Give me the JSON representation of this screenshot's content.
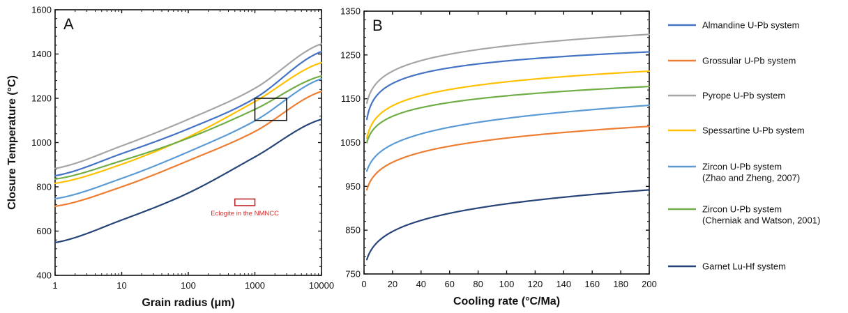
{
  "legend": {
    "placement": "right",
    "entries": [
      {
        "key": "almandine",
        "lines": [
          "Almandine U-Pb system"
        ],
        "color": "#4472c4"
      },
      {
        "key": "grossular",
        "lines": [
          "Grossular U-Pb system"
        ],
        "color": "#ed7d31"
      },
      {
        "key": "pyrope",
        "lines": [
          "Pyrope U-Pb system"
        ],
        "color": "#a5a5a5"
      },
      {
        "key": "spessartine",
        "lines": [
          "Spessartine U-Pb system"
        ],
        "color": "#ffc000"
      },
      {
        "key": "zircon_zz",
        "lines": [
          "Zircon U-Pb system",
          "(Zhao and Zheng, 2007)"
        ],
        "color": "#5b9bd5"
      },
      {
        "key": "zircon_cw",
        "lines": [
          "Zircon U-Pb system",
          "(Cherniak and Watson, 2001)"
        ],
        "color": "#70ad47"
      },
      {
        "key": "garnet_luhf",
        "lines": [
          "Garnet Lu-Hf system"
        ],
        "color": "#264478"
      }
    ]
  },
  "chart_data": [
    {
      "type": "line",
      "panel": "A",
      "title": "",
      "xlabel": "Grain radius (μm)",
      "ylabel": "Closure Temperature (°C)",
      "xscale": "log",
      "xlim": [
        1,
        10000
      ],
      "ylim": [
        400,
        1600
      ],
      "xticks": [
        1,
        10,
        100,
        1000,
        10000
      ],
      "xtick_labels": [
        "1",
        "10",
        "100",
        "1000",
        "10000"
      ],
      "yticks": [
        400,
        600,
        800,
        1000,
        1200,
        1400,
        1600
      ],
      "ytick_labels": [
        "400",
        "600",
        "800",
        "1000",
        "1200",
        "1400",
        "1600"
      ],
      "grid": false,
      "x": [
        1,
        10,
        100,
        1000,
        10000
      ],
      "series": [
        {
          "key": "almandine",
          "name": "Almandine U-Pb system",
          "values": [
            850,
            950,
            1062,
            1200,
            1411
          ]
        },
        {
          "key": "grossular",
          "name": "Grossular U-Pb system",
          "values": [
            712,
            800,
            918,
            1050,
            1231
          ]
        },
        {
          "key": "pyrope",
          "name": "Pyrope U-Pb system",
          "values": [
            883,
            985,
            1105,
            1245,
            1446
          ]
        },
        {
          "key": "spessartine",
          "name": "Spessartine U-Pb system",
          "values": [
            816,
            902,
            1025,
            1185,
            1361
          ]
        },
        {
          "key": "zircon_zz",
          "name": "Zircon U-Pb system (Zhao and Zheng, 2007)",
          "values": [
            746,
            838,
            958,
            1098,
            1288
          ]
        },
        {
          "key": "zircon_cw",
          "name": "Zircon U-Pb system (Cherniak and Watson, 2001)",
          "values": [
            835,
            918,
            1020,
            1150,
            1301
          ]
        },
        {
          "key": "garnet_luhf",
          "name": "Garnet Lu-Hf system",
          "values": [
            548,
            650,
            772,
            935,
            1105
          ]
        }
      ],
      "annotations": [
        {
          "kind": "box",
          "label": "",
          "x_range": [
            1000,
            3000
          ],
          "y_range": [
            1100,
            1200
          ],
          "color": "#111111"
        },
        {
          "kind": "box",
          "label": "Eclogite in the NMNCC",
          "x_range": [
            500,
            1000
          ],
          "y_range": [
            715,
            745
          ],
          "color": "#c0272d"
        }
      ],
      "panel_label": "A"
    },
    {
      "type": "line",
      "panel": "B",
      "title": "",
      "xlabel": "Cooling rate (°C/Ma)",
      "ylabel": "",
      "xlim": [
        0,
        200
      ],
      "ylim": [
        750,
        1350
      ],
      "xticks": [
        0,
        20,
        40,
        60,
        80,
        100,
        120,
        140,
        160,
        180,
        200
      ],
      "xtick_labels": [
        "0",
        "20",
        "40",
        "60",
        "80",
        "100",
        "120",
        "140",
        "160",
        "180",
        "200"
      ],
      "yticks": [
        750,
        850,
        950,
        1050,
        1150,
        1250,
        1350
      ],
      "ytick_labels": [
        "750",
        "850",
        "950",
        "1050",
        "1150",
        "1250",
        "1350"
      ],
      "grid": false,
      "x": [
        2,
        20,
        200
      ],
      "series": [
        {
          "key": "almandine",
          "name": "Almandine U-Pb system",
          "values": [
            1103,
            1185,
            1257
          ]
        },
        {
          "key": "grossular",
          "name": "Grossular U-Pb system",
          "values": [
            942,
            1005,
            1087
          ]
        },
        {
          "key": "pyrope",
          "name": "Pyrope U-Pb system",
          "values": [
            1140,
            1213,
            1297
          ]
        },
        {
          "key": "spessartine",
          "name": "Spessartine U-Pb system",
          "values": [
            1060,
            1134,
            1213
          ]
        },
        {
          "key": "zircon_zz",
          "name": "Zircon U-Pb system (Zhao and Zheng, 2007)",
          "values": [
            985,
            1046,
            1135
          ]
        },
        {
          "key": "zircon_cw",
          "name": "Zircon U-Pb system (Cherniak and Watson, 2001)",
          "values": [
            1050,
            1110,
            1178
          ]
        },
        {
          "key": "garnet_luhf",
          "name": "Garnet Lu-Hf system",
          "values": [
            783,
            847,
            942
          ]
        }
      ],
      "panel_label": "B"
    }
  ]
}
